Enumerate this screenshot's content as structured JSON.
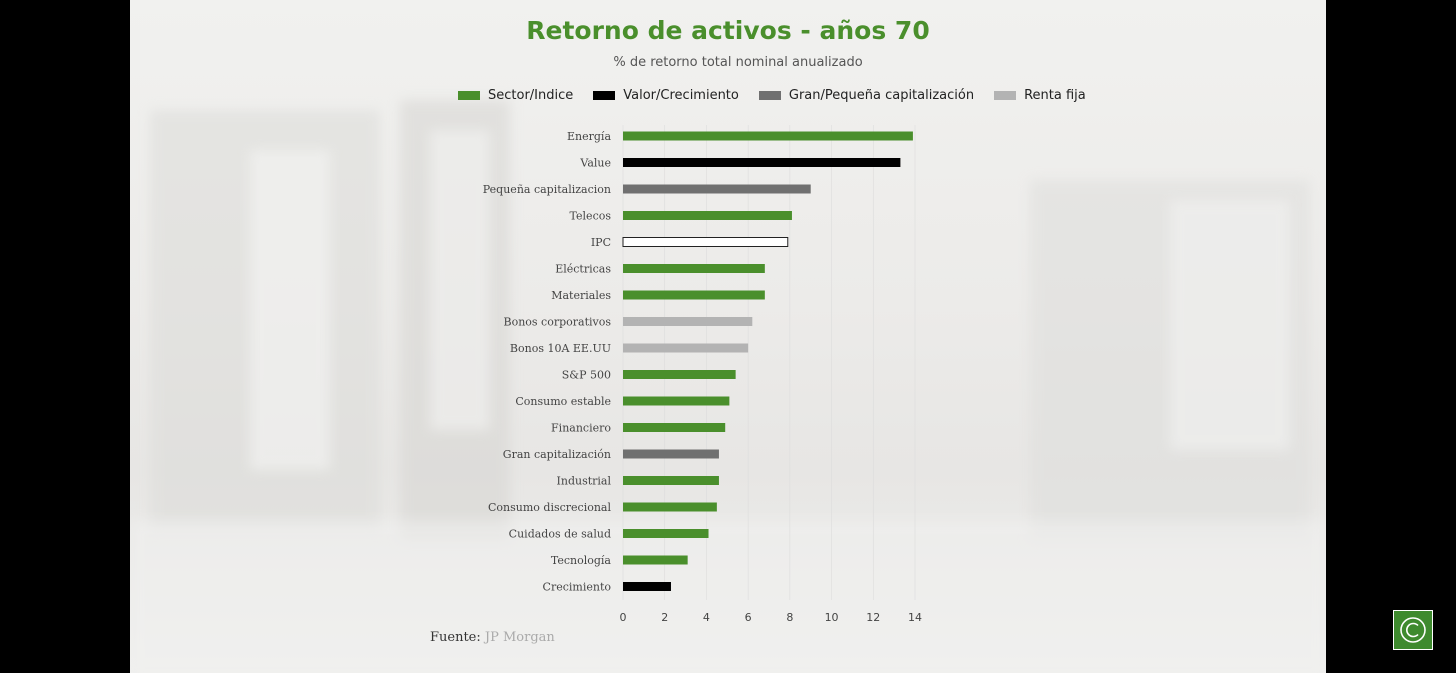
{
  "title": "Retorno de activos - años 70",
  "subtitle": "% de retorno total nominal anualizado",
  "legend": [
    {
      "label": "Sector/Indice",
      "color": "#4a8f2c"
    },
    {
      "label": "Valor/Crecimiento",
      "color": "#000000"
    },
    {
      "label": "Gran/Pequeña capitalización",
      "color": "#707070"
    },
    {
      "label": "Renta fija",
      "color": "#b3b3b3"
    }
  ],
  "source": {
    "label": "Fuente:",
    "name": "JP Morgan"
  },
  "corner_icon": "c-logo-icon",
  "chart_data": {
    "type": "bar",
    "orientation": "horizontal",
    "title": "Retorno de activos - años 70",
    "subtitle": "% de retorno total nominal anualizado",
    "xlabel": "",
    "ylabel": "",
    "xlim": [
      0,
      14
    ],
    "xticks": [
      0,
      2,
      4,
      6,
      8,
      10,
      12,
      14
    ],
    "grid": false,
    "legend_position": "top",
    "categories": [
      "Energía",
      "Value",
      "Pequeña capitalizacion",
      "Telecos",
      "IPC",
      "Eléctricas",
      "Materiales",
      "Bonos corporativos",
      "Bonos 10A EE.UU",
      "S&P 500",
      "Consumo estable",
      "Financiero",
      "Gran capitalización",
      "Industrial",
      "Consumo discrecional",
      "Cuidados de salud",
      "Tecnología",
      "Crecimiento"
    ],
    "values": [
      13.9,
      13.3,
      9.0,
      8.1,
      7.9,
      6.8,
      6.8,
      6.2,
      6.0,
      5.4,
      5.1,
      4.9,
      4.6,
      4.6,
      4.5,
      4.1,
      3.1,
      2.3
    ],
    "groups": [
      "Sector/Indice",
      "Valor/Crecimiento",
      "Gran/Pequeña capitalización",
      "Sector/Indice",
      "IPC",
      "Sector/Indice",
      "Sector/Indice",
      "Renta fija",
      "Renta fija",
      "Sector/Indice",
      "Sector/Indice",
      "Sector/Indice",
      "Gran/Pequeña capitalización",
      "Sector/Indice",
      "Sector/Indice",
      "Sector/Indice",
      "Sector/Indice",
      "Valor/Crecimiento"
    ],
    "colors": [
      "#4a8f2c",
      "#000000",
      "#707070",
      "#4a8f2c",
      "#ffffff",
      "#4a8f2c",
      "#4a8f2c",
      "#b3b3b3",
      "#b3b3b3",
      "#4a8f2c",
      "#4a8f2c",
      "#4a8f2c",
      "#707070",
      "#4a8f2c",
      "#4a8f2c",
      "#4a8f2c",
      "#4a8f2c",
      "#000000"
    ]
  }
}
